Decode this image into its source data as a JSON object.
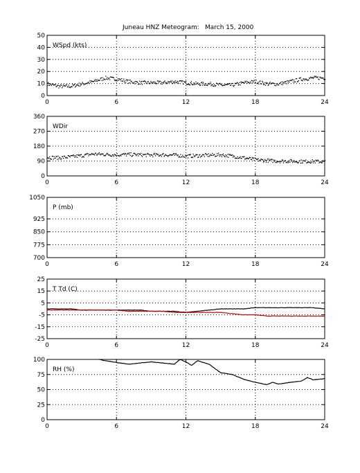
{
  "figure": {
    "title": "Juneau HNZ Meteogram:",
    "date": "March 15, 2000"
  },
  "chart_data": [
    {
      "id": "wspd",
      "type": "scatter",
      "label": "WSpd (kts)",
      "xlim": [
        0,
        24
      ],
      "ylim": [
        0,
        50
      ],
      "xticks": [
        0,
        6,
        12,
        18,
        24
      ],
      "yticks": [
        0,
        10,
        20,
        30,
        40,
        50
      ],
      "grid": true,
      "series": [
        {
          "color": "#000000",
          "x": [
            0,
            1,
            2,
            3,
            4,
            5,
            6,
            7,
            8,
            9,
            10,
            11,
            12,
            13,
            14,
            15,
            16,
            17,
            18,
            19,
            20,
            21,
            22,
            23,
            24
          ],
          "y": [
            10,
            8,
            8,
            10,
            12,
            15,
            14,
            12,
            11,
            11,
            11,
            12,
            11,
            10,
            10,
            9,
            9,
            11,
            12,
            10,
            10,
            12,
            14,
            15,
            15
          ]
        }
      ]
    },
    {
      "id": "wdir",
      "type": "scatter",
      "label": "WDir",
      "xlim": [
        0,
        24
      ],
      "ylim": [
        0,
        360
      ],
      "xticks": [
        0,
        6,
        12,
        18,
        24
      ],
      "yticks": [
        0,
        90,
        180,
        270,
        360
      ],
      "grid": true,
      "series": [
        {
          "color": "#000000",
          "x": [
            0,
            1,
            2,
            3,
            4,
            5,
            6,
            7,
            8,
            9,
            10,
            11,
            12,
            13,
            14,
            15,
            16,
            17,
            18,
            19,
            20,
            21,
            22,
            23,
            24
          ],
          "y": [
            115,
            112,
            118,
            125,
            135,
            132,
            130,
            132,
            130,
            128,
            130,
            128,
            122,
            125,
            128,
            130,
            122,
            112,
            100,
            95,
            92,
            92,
            90,
            90,
            88
          ]
        }
      ]
    },
    {
      "id": "pres",
      "type": "line",
      "label": "P (mb)",
      "xlim": [
        0,
        24
      ],
      "ylim": [
        700,
        1050
      ],
      "xticks": [
        0,
        6,
        12,
        18,
        24
      ],
      "yticks": [
        700,
        775,
        850,
        925,
        1050
      ],
      "grid": true,
      "series": []
    },
    {
      "id": "temp",
      "type": "line",
      "label": "T Td (C)",
      "xlim": [
        0,
        24
      ],
      "ylim": [
        -25,
        25
      ],
      "xticks": [
        0,
        6,
        12,
        18,
        24
      ],
      "yticks": [
        -25,
        -15,
        -5,
        5,
        15,
        25
      ],
      "grid": true,
      "series": [
        {
          "color": "#000000",
          "x": [
            0,
            1,
            2,
            3,
            4,
            5,
            6,
            7,
            8,
            9,
            10,
            11,
            12,
            13,
            14,
            15,
            16,
            17,
            18,
            19,
            20,
            21,
            22,
            23,
            24
          ],
          "y": [
            0,
            0,
            0,
            -1,
            -1,
            -1,
            -1,
            -1,
            -1,
            -2,
            -2,
            -2,
            -3,
            -2,
            -1,
            0,
            0,
            0,
            1,
            1,
            1,
            1,
            1,
            1,
            0
          ]
        },
        {
          "color": "#cc0000",
          "x": [
            0,
            1,
            2,
            3,
            4,
            5,
            6,
            7,
            8,
            9,
            10,
            11,
            12,
            13,
            14,
            15,
            16,
            17,
            18,
            19,
            20,
            21,
            22,
            23,
            24
          ],
          "y": [
            -1,
            -1,
            -1,
            -1,
            -1,
            -1,
            -1,
            -2,
            -2,
            -2,
            -2,
            -3,
            -3,
            -3,
            -3,
            -3,
            -4,
            -5,
            -5,
            -6,
            -6,
            -6,
            -6,
            -6,
            -6
          ]
        }
      ]
    },
    {
      "id": "rh",
      "type": "line",
      "label": "RH (%)",
      "xlim": [
        0,
        24
      ],
      "ylim": [
        0,
        100
      ],
      "xticks": [
        0,
        6,
        12,
        18,
        24
      ],
      "yticks": [
        0,
        25,
        50,
        75,
        100
      ],
      "grid": true,
      "series": [
        {
          "color": "#000000",
          "x": [
            4.5,
            5,
            6,
            7,
            8,
            9,
            10,
            11,
            11.5,
            12,
            12.5,
            13,
            14,
            14.5,
            15,
            16,
            17,
            18,
            19,
            19.5,
            20,
            21,
            22,
            22.5,
            23,
            24
          ],
          "y": [
            100,
            98,
            95,
            92,
            94,
            96,
            94,
            92,
            100,
            96,
            90,
            98,
            92,
            85,
            78,
            75,
            67,
            62,
            58,
            62,
            59,
            62,
            64,
            70,
            66,
            68
          ]
        }
      ]
    }
  ]
}
